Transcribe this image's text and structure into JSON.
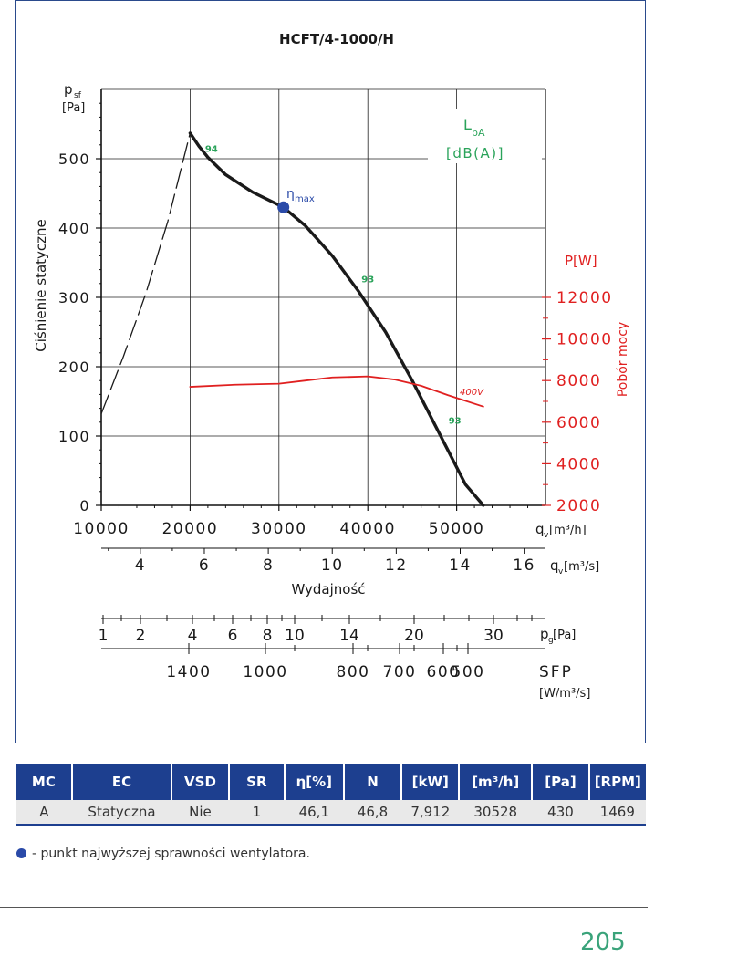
{
  "chart_data": {
    "type": "line",
    "title": "HCFT/4-1000/H",
    "ylabel": "Ciśnienie statyczne",
    "ylabel_unit_top": "p",
    "ylabel_unit_sub": "sf",
    "ylabel_unit_bracket": "[Pa]",
    "xlabel": "Wydajność",
    "y2label": "Pobór mocy",
    "y2unit": "P[W]",
    "lpa_label_main": "L",
    "lpa_label_sub": "pA",
    "lpa_unit": "[dB(A)]",
    "eta_label": "η",
    "eta_sub": "max",
    "xlim": [
      10000,
      60000
    ],
    "ylim": [
      0,
      600
    ],
    "y2lim": [
      2000,
      12000
    ],
    "x_ticks": [
      "10000",
      "20000",
      "30000",
      "40000",
      "50000"
    ],
    "x_tick_values": [
      10000,
      20000,
      30000,
      40000,
      50000
    ],
    "x_axis_unit": "q",
    "x_axis_unit_sub": "v",
    "x_axis_unit_bracket": "[m³/h]",
    "y_ticks": [
      "0",
      "100",
      "200",
      "300",
      "400",
      "500"
    ],
    "y_tick_values": [
      0,
      100,
      200,
      300,
      400,
      500
    ],
    "y2_ticks": [
      "2000",
      "4000",
      "6000",
      "8000",
      "10000",
      "12000"
    ],
    "y2_tick_values": [
      2000,
      4000,
      6000,
      8000,
      10000,
      12000
    ],
    "x2_ticks": [
      "4",
      "6",
      "8",
      "10",
      "12",
      "14",
      "16"
    ],
    "x2_tick_values": [
      4,
      6,
      8,
      10,
      12,
      14,
      16
    ],
    "x2_unit": "q",
    "x2_unit_sub": "v",
    "x2_unit_bracket": "[m³/s]",
    "pg_ticks": [
      "1",
      "2",
      "4",
      "6",
      "8",
      "10",
      "14",
      "20",
      "30"
    ],
    "pg_unit": "p",
    "pg_unit_sub": "g",
    "pg_unit_bracket": "[Pa]",
    "sfp_ticks": [
      "1400",
      "1000",
      "800",
      "700",
      "600",
      "500"
    ],
    "sfp_unit": "SFP",
    "sfp_unit2": "[W/m³/s]",
    "series": [
      {
        "name": "pressure",
        "color": "#1a1a1a",
        "x": [
          20000,
          21000,
          22000,
          24000,
          27000,
          30500,
          33000,
          36000,
          39000,
          42000,
          45000,
          47000,
          49000,
          51000,
          53000
        ],
        "y": [
          537,
          518,
          502,
          477,
          452,
          430,
          403,
          360,
          308,
          250,
          180,
          130,
          80,
          30,
          0
        ]
      },
      {
        "name": "stall-region",
        "color": "#1a1a1a",
        "dashed": true,
        "x": [
          10000,
          12500,
          15000,
          17500,
          20000
        ],
        "y": [
          132,
          215,
          305,
          410,
          537
        ]
      },
      {
        "name": "400V",
        "axis": "y2",
        "color": "#e02020",
        "x": [
          20000,
          25000,
          30000,
          33000,
          36000,
          40000,
          43000,
          46000,
          49000,
          53000
        ],
        "y": [
          7700,
          7800,
          7850,
          8000,
          8150,
          8200,
          8050,
          7750,
          7300,
          6750
        ]
      }
    ],
    "series_label": "400V",
    "markers": [
      {
        "name": "eta-max",
        "x": 30500,
        "y": 430,
        "color": "#2a4aa8"
      }
    ],
    "lpa_labels": [
      {
        "text": "94",
        "x": 22400,
        "y": 510
      },
      {
        "text": "93",
        "x": 40000,
        "y": 322
      },
      {
        "text": "93",
        "x": 49800,
        "y": 118
      }
    ],
    "grid": true
  },
  "table": {
    "headers": [
      "MC",
      "EC",
      "VSD",
      "SR",
      "η[%]",
      "N",
      "[kW]",
      "[m³/h]",
      "[Pa]",
      "[RPM]"
    ],
    "row": [
      "A",
      "Statyczna",
      "Nie",
      "1",
      "46,1",
      "46,8",
      "7,912",
      "30528",
      "430",
      "1469"
    ]
  },
  "note": "- punkt najwyższej sprawności wentylatora.",
  "page_number": "205",
  "colors": {
    "brand": "#1d3f8f",
    "power": "#e02020",
    "lpa": "#2aa35a",
    "marker": "#2a4aa8"
  }
}
